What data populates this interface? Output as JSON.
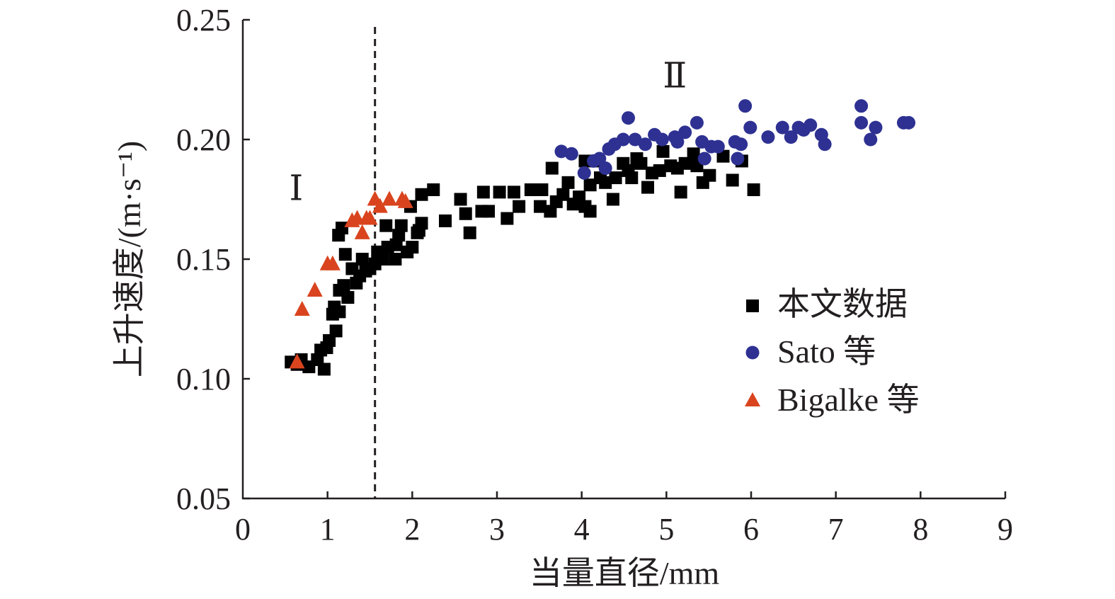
{
  "chart_data": {
    "type": "scatter",
    "title": "",
    "xlabel": "当量直径/mm",
    "ylabel": "上升速度/(m·s⁻¹)",
    "xlim": [
      0,
      9
    ],
    "ylim": [
      0.05,
      0.25
    ],
    "xticks": [
      "0",
      "1",
      "2",
      "3",
      "4",
      "5",
      "6",
      "7",
      "8",
      "9"
    ],
    "yticks": [
      "0.05",
      "0.10",
      "0.15",
      "0.20",
      "0.25"
    ],
    "grid": false,
    "legend_position": "right",
    "divider_x": 1.56,
    "annotations": [
      {
        "text": "Ⅰ",
        "x": 0.63,
        "y": 0.18
      },
      {
        "text": "Ⅱ",
        "x": 5.1,
        "y": 0.227
      }
    ],
    "series": [
      {
        "name": "本文数据",
        "marker": "square",
        "color": "#000000",
        "points": [
          [
            0.57,
            0.107
          ],
          [
            0.64,
            0.106
          ],
          [
            0.69,
            0.108
          ],
          [
            0.78,
            0.105
          ],
          [
            0.88,
            0.108
          ],
          [
            0.96,
            0.104
          ],
          [
            0.92,
            0.112
          ],
          [
            0.99,
            0.113
          ],
          [
            1.02,
            0.116
          ],
          [
            1.1,
            0.12
          ],
          [
            1.06,
            0.127
          ],
          [
            1.08,
            0.13
          ],
          [
            1.14,
            0.128
          ],
          [
            1.14,
            0.137
          ],
          [
            1.19,
            0.139
          ],
          [
            1.24,
            0.134
          ],
          [
            1.21,
            0.152
          ],
          [
            1.13,
            0.16
          ],
          [
            1.17,
            0.163
          ],
          [
            1.29,
            0.146
          ],
          [
            1.34,
            0.14
          ],
          [
            1.38,
            0.143
          ],
          [
            1.41,
            0.15
          ],
          [
            1.45,
            0.145
          ],
          [
            1.5,
            0.146
          ],
          [
            1.56,
            0.148
          ],
          [
            1.59,
            0.153
          ],
          [
            1.65,
            0.15
          ],
          [
            1.69,
            0.164
          ],
          [
            1.71,
            0.155
          ],
          [
            1.8,
            0.15
          ],
          [
            1.81,
            0.156
          ],
          [
            1.84,
            0.16
          ],
          [
            1.87,
            0.164
          ],
          [
            1.94,
            0.153
          ],
          [
            1.98,
            0.172
          ],
          [
            2.0,
            0.155
          ],
          [
            2.06,
            0.161
          ],
          [
            2.08,
            0.162
          ],
          [
            2.11,
            0.165
          ],
          [
            2.11,
            0.177
          ],
          [
            2.25,
            0.179
          ],
          [
            2.39,
            0.166
          ],
          [
            2.57,
            0.175
          ],
          [
            2.63,
            0.169
          ],
          [
            2.68,
            0.161
          ],
          [
            2.82,
            0.17
          ],
          [
            2.84,
            0.178
          ],
          [
            2.9,
            0.17
          ],
          [
            3.03,
            0.178
          ],
          [
            3.12,
            0.167
          ],
          [
            3.2,
            0.178
          ],
          [
            3.26,
            0.172
          ],
          [
            3.4,
            0.179
          ],
          [
            3.51,
            0.172
          ],
          [
            3.53,
            0.179
          ],
          [
            3.63,
            0.17
          ],
          [
            3.65,
            0.188
          ],
          [
            3.7,
            0.174
          ],
          [
            3.78,
            0.177
          ],
          [
            3.84,
            0.182
          ],
          [
            3.9,
            0.173
          ],
          [
            3.97,
            0.176
          ],
          [
            4.04,
            0.172
          ],
          [
            4.1,
            0.17
          ],
          [
            4.04,
            0.191
          ],
          [
            4.1,
            0.181
          ],
          [
            4.18,
            0.191
          ],
          [
            4.22,
            0.184
          ],
          [
            4.28,
            0.182
          ],
          [
            4.37,
            0.175
          ],
          [
            4.4,
            0.184
          ],
          [
            4.49,
            0.19
          ],
          [
            4.55,
            0.187
          ],
          [
            4.59,
            0.184
          ],
          [
            4.65,
            0.192
          ],
          [
            4.7,
            0.19
          ],
          [
            4.78,
            0.18
          ],
          [
            4.83,
            0.186
          ],
          [
            4.92,
            0.187
          ],
          [
            4.96,
            0.195
          ],
          [
            5.05,
            0.189
          ],
          [
            5.13,
            0.188
          ],
          [
            5.17,
            0.178
          ],
          [
            5.22,
            0.19
          ],
          [
            5.32,
            0.194
          ],
          [
            5.36,
            0.189
          ],
          [
            5.43,
            0.182
          ],
          [
            5.51,
            0.185
          ],
          [
            5.67,
            0.193
          ],
          [
            5.78,
            0.183
          ],
          [
            5.89,
            0.191
          ],
          [
            6.03,
            0.179
          ]
        ]
      },
      {
        "name": "Sato 等",
        "marker": "circle",
        "color": "#2e3192",
        "points": [
          [
            3.76,
            0.195
          ],
          [
            3.88,
            0.194
          ],
          [
            4.03,
            0.186
          ],
          [
            4.14,
            0.191
          ],
          [
            4.21,
            0.192
          ],
          [
            4.28,
            0.188
          ],
          [
            4.32,
            0.196
          ],
          [
            4.39,
            0.198
          ],
          [
            4.49,
            0.2
          ],
          [
            4.55,
            0.209
          ],
          [
            4.63,
            0.2
          ],
          [
            4.75,
            0.198
          ],
          [
            4.86,
            0.202
          ],
          [
            4.95,
            0.2
          ],
          [
            5.1,
            0.201
          ],
          [
            5.13,
            0.199
          ],
          [
            5.22,
            0.203
          ],
          [
            5.36,
            0.207
          ],
          [
            5.42,
            0.199
          ],
          [
            5.45,
            0.192
          ],
          [
            5.53,
            0.197
          ],
          [
            5.61,
            0.197
          ],
          [
            5.81,
            0.199
          ],
          [
            5.84,
            0.192
          ],
          [
            5.88,
            0.198
          ],
          [
            5.93,
            0.214
          ],
          [
            5.99,
            0.205
          ],
          [
            6.2,
            0.201
          ],
          [
            6.37,
            0.205
          ],
          [
            6.47,
            0.201
          ],
          [
            6.56,
            0.205
          ],
          [
            6.62,
            0.204
          ],
          [
            6.7,
            0.206
          ],
          [
            6.83,
            0.202
          ],
          [
            6.87,
            0.198
          ],
          [
            7.3,
            0.214
          ],
          [
            7.3,
            0.207
          ],
          [
            7.41,
            0.2
          ],
          [
            7.47,
            0.205
          ],
          [
            7.8,
            0.207
          ],
          [
            7.86,
            0.207
          ]
        ]
      },
      {
        "name": "Bigalke 等",
        "marker": "triangle",
        "color": "#d9441f",
        "points": [
          [
            0.64,
            0.107
          ],
          [
            0.7,
            0.129
          ],
          [
            0.85,
            0.137
          ],
          [
            1.0,
            0.148
          ],
          [
            1.06,
            0.148
          ],
          [
            1.29,
            0.166
          ],
          [
            1.35,
            0.167
          ],
          [
            1.41,
            0.161
          ],
          [
            1.46,
            0.167
          ],
          [
            1.5,
            0.167
          ],
          [
            1.56,
            0.175
          ],
          [
            1.62,
            0.172
          ],
          [
            1.73,
            0.175
          ],
          [
            1.88,
            0.175
          ],
          [
            1.92,
            0.174
          ]
        ]
      }
    ]
  }
}
